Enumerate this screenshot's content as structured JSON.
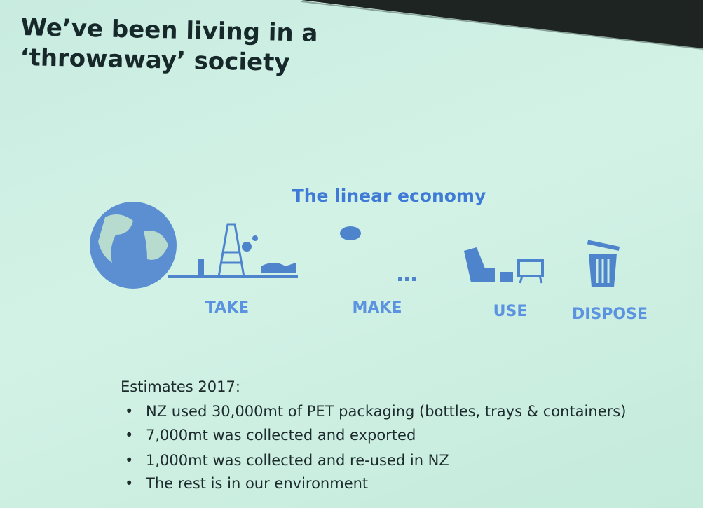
{
  "slide": {
    "title": "We’ve been living in a ‘throwaway’ society",
    "diagram": {
      "title": "The linear economy",
      "stages": [
        "TAKE",
        "MAKE",
        "USE",
        "DISPOSE"
      ]
    },
    "estimates": {
      "heading": "Estimates 2017:",
      "bullets": [
        "NZ used 30,000mt of PET packaging (bottles, trays & containers)",
        "7,000mt was collected and exported",
        "1,000mt was collected and re-used in NZ",
        "The rest is in our environment"
      ]
    }
  }
}
